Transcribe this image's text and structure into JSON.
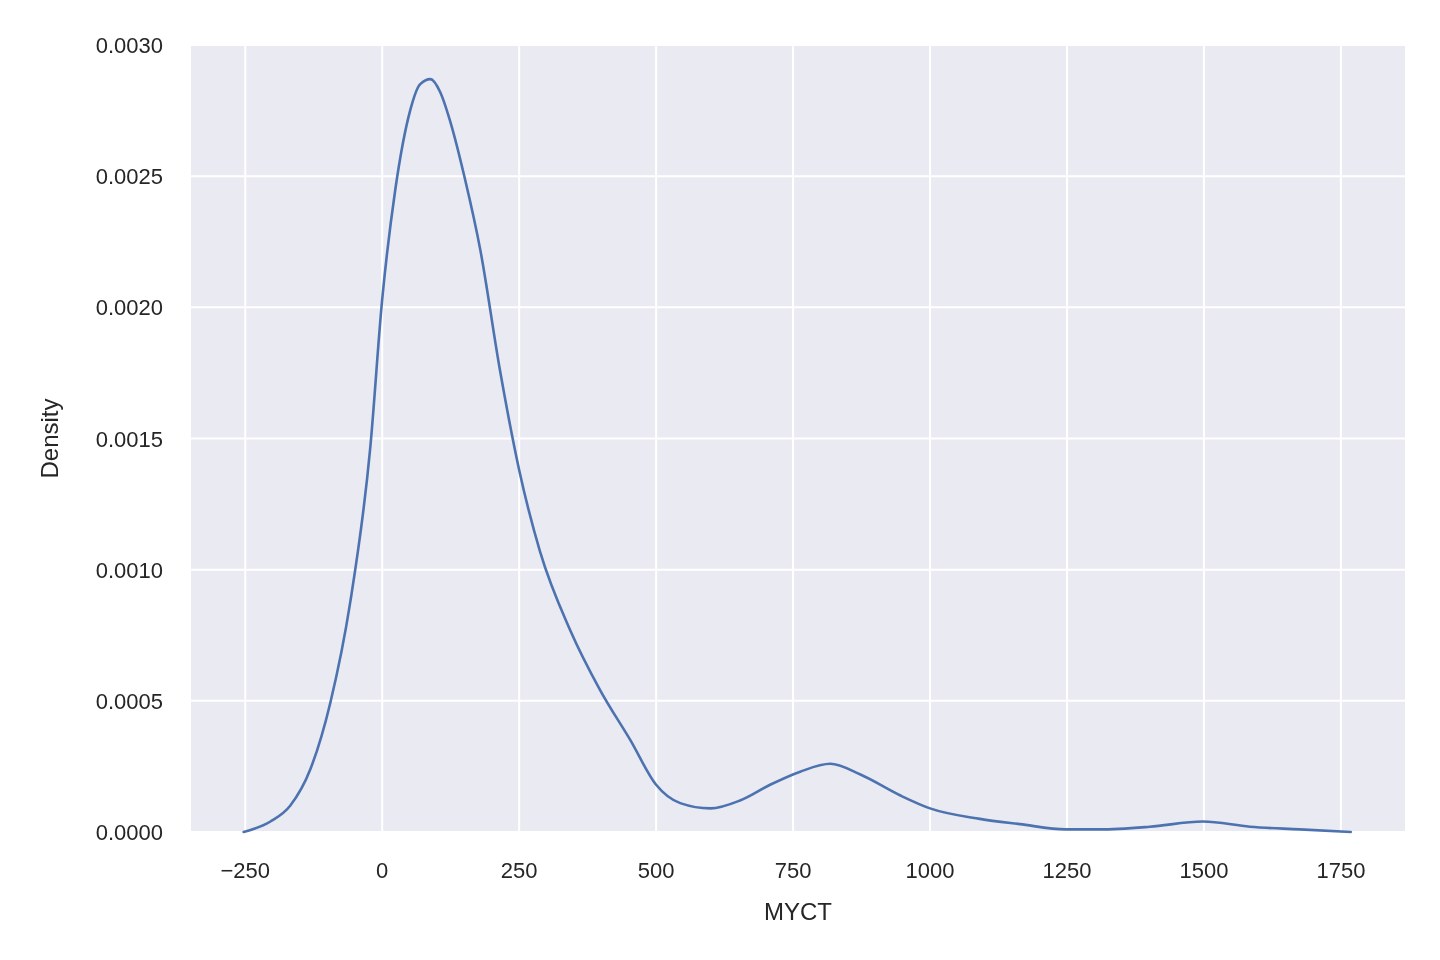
{
  "chart_data": {
    "type": "line",
    "xlabel": "MYCT",
    "ylabel": "Density",
    "grid": true,
    "marker": "none",
    "line_style": "solid",
    "xlim": [
      -349,
      1867
    ],
    "ylim": [
      0,
      0.003
    ],
    "xticks": [
      -250,
      0,
      250,
      500,
      750,
      1000,
      1250,
      1500,
      1750
    ],
    "yticks": [
      {
        "value": 0,
        "label": "0.0000"
      },
      {
        "value": 0.0005,
        "label": "0.0005"
      },
      {
        "value": 0.001,
        "label": "0.0010"
      },
      {
        "value": 0.0015,
        "label": "0.0015"
      },
      {
        "value": 0.002,
        "label": "0.0020"
      },
      {
        "value": 0.0025,
        "label": "0.0025"
      },
      {
        "value": 0.003,
        "label": "0.0030"
      }
    ],
    "series": [
      {
        "color": "#4c72b0",
        "x": [
          -253,
          -204,
          -168,
          -131,
          -95,
          -58,
          -22,
          0,
          24,
          51,
          69,
          88,
          106,
          124,
          151,
          179,
          215,
          250,
          288,
          343,
          398,
          453,
          500,
          544,
          599,
          653,
          708,
          763,
          818,
          872,
          945,
          1000,
          1091,
          1164,
          1248,
          1310,
          1401,
          1498,
          1584,
          1675,
          1768
        ],
        "values": [
          0,
          4e-05,
          0.0001,
          0.00024,
          0.00049,
          0.00088,
          0.00146,
          0.00203,
          0.00245,
          0.00275,
          0.00285,
          0.00287,
          0.00282,
          0.00271,
          0.00249,
          0.00222,
          0.00176,
          0.00138,
          0.00107,
          0.00077,
          0.00054,
          0.00035,
          0.00018,
          0.00011,
          9e-05,
          0.00012,
          0.00018,
          0.00023,
          0.00026,
          0.00022,
          0.00014,
          9e-05,
          5e-05,
          3e-05,
          1e-05,
          1e-05,
          2e-05,
          4e-05,
          2e-05,
          1e-05,
          0
        ]
      }
    ]
  }
}
